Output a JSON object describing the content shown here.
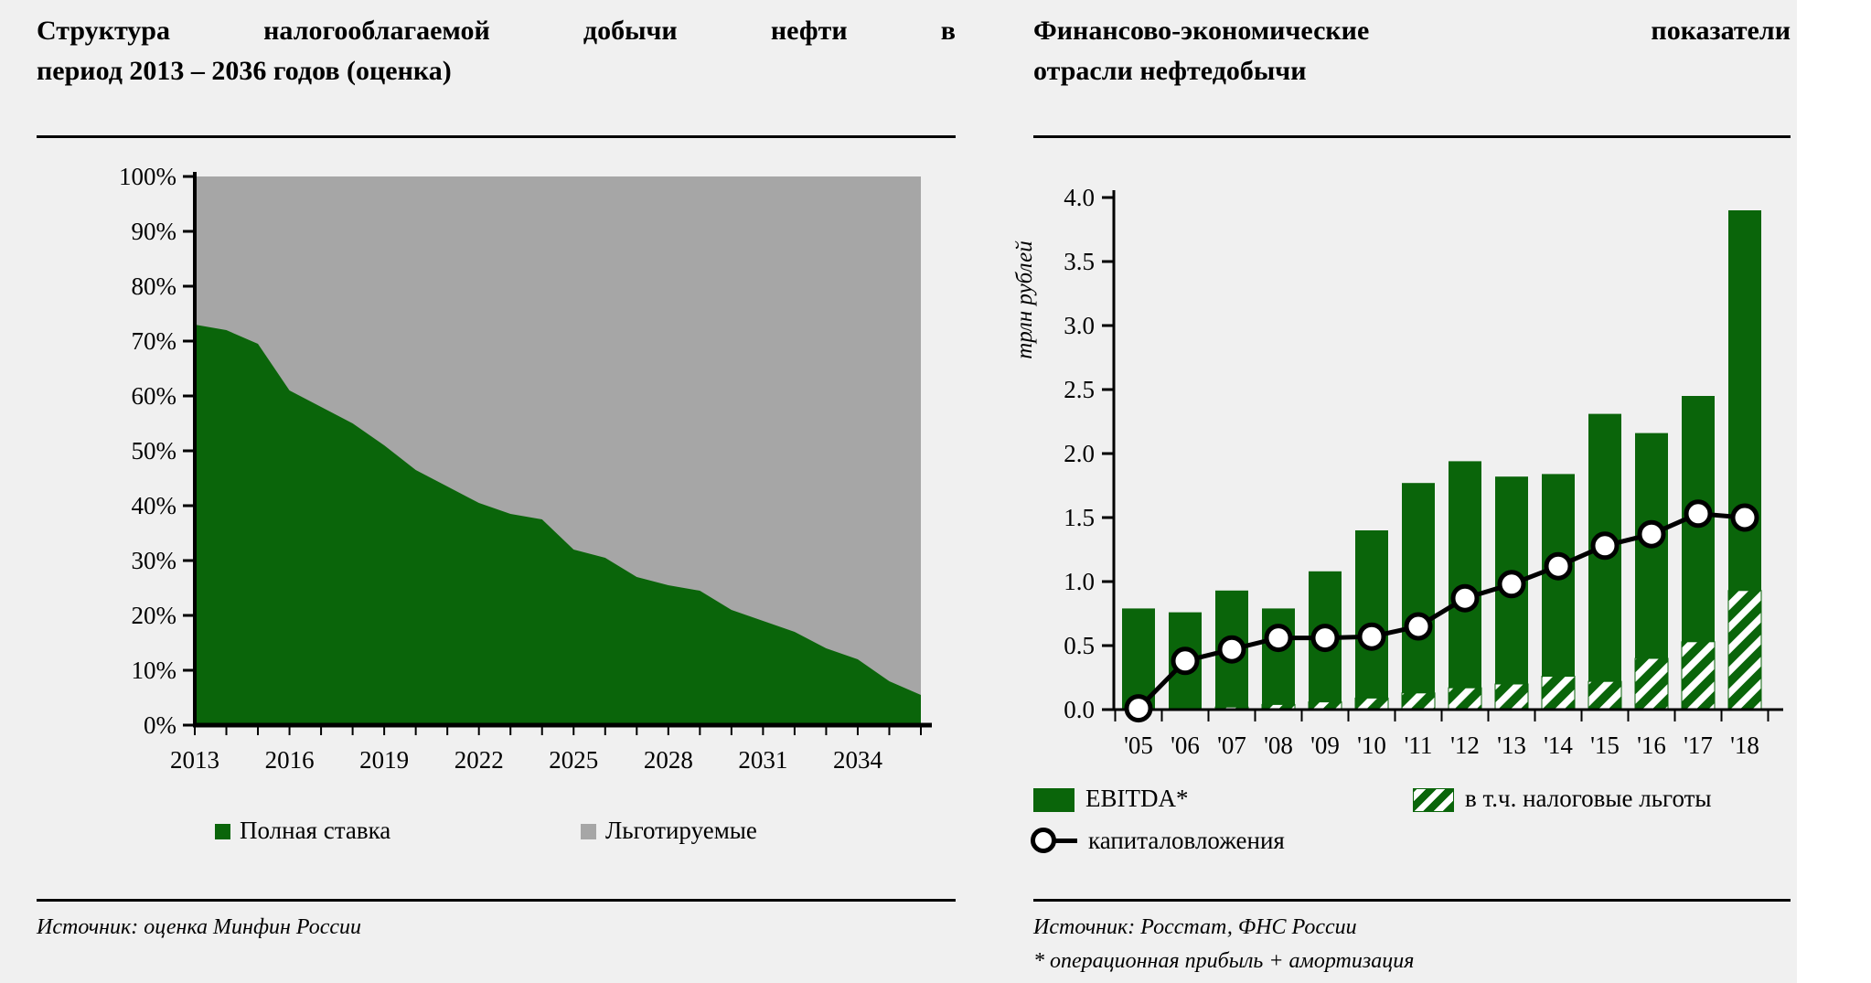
{
  "colors": {
    "green": "#0a650a",
    "gray": "#a6a6a6",
    "slide_background": "#f0f0f0",
    "line_black": "#000000"
  },
  "left_panel": {
    "title_lines": [
      "Структура налогооблагаемой добычи нефти в",
      "период 2013 – 2036 годов (оценка)"
    ],
    "legend": [
      {
        "label": "Полная ставка",
        "swatch": "solid-green-square"
      },
      {
        "label": "Льготируемые",
        "swatch": "solid-gray-square"
      }
    ],
    "source": "Источник: оценка Минфин России"
  },
  "right_panel": {
    "title_lines": [
      "Финансово-экономические показатели",
      "отрасли нефтедобычи"
    ],
    "legend": [
      {
        "label": "EBITDA*",
        "swatch": "solid-green-rect"
      },
      {
        "label": "в т.ч. налоговые льготы",
        "swatch": "green-hatched-rect"
      },
      {
        "label": "капиталовложения",
        "swatch": "line-with-circle-marker"
      }
    ],
    "source": "Источник: Росстат, ФНС России",
    "footnote": "* операционная прибыль + амортизация"
  },
  "chart_data": [
    {
      "type": "area",
      "title": "Структура налогооблагаемой добычи нефти в период 2013 – 2036 годов (оценка)",
      "stacked_percent": true,
      "grid": false,
      "legend_position": "bottom",
      "x": [
        2013,
        2014,
        2015,
        2016,
        2017,
        2018,
        2019,
        2020,
        2021,
        2022,
        2023,
        2024,
        2025,
        2026,
        2027,
        2028,
        2029,
        2030,
        2031,
        2032,
        2033,
        2034,
        2035,
        2036
      ],
      "xtick_labels": [
        2013,
        2016,
        2019,
        2022,
        2025,
        2028,
        2031,
        2034
      ],
      "ylim": [
        0,
        100
      ],
      "ytick_step": 10,
      "ytick_suffix": "%",
      "xlabel": "",
      "ylabel": "",
      "series": [
        {
          "name": "Полная ставка",
          "color": "#0a650a",
          "values": [
            73,
            72,
            69.5,
            61,
            58,
            55,
            51,
            46.5,
            43.5,
            40.5,
            38.5,
            37.5,
            32,
            30.5,
            27,
            25.5,
            24.5,
            21,
            19,
            17,
            14,
            12,
            8,
            5.5
          ]
        },
        {
          "name": "Льготируемые",
          "color": "#a6a6a6",
          "values": [
            27,
            28,
            30.5,
            39,
            42,
            45,
            49,
            53.5,
            56.5,
            59.5,
            61.5,
            62.5,
            68,
            69.5,
            73,
            74.5,
            75.5,
            79,
            81,
            83,
            86,
            88,
            92,
            94.5
          ]
        }
      ]
    },
    {
      "type": "bar",
      "title": "Финансово-экономические показатели отрасли нефтедобычи",
      "grid": false,
      "legend_position": "bottom",
      "categories": [
        "'05",
        "'06",
        "'07",
        "'08",
        "'09",
        "'10",
        "'11",
        "'12",
        "'13",
        "'14",
        "'15",
        "'16",
        "'17",
        "'18"
      ],
      "ylim": [
        0,
        4
      ],
      "ytick_step": 0.5,
      "xlabel": "",
      "ylabel": "трлн рублей",
      "series": [
        {
          "name": "EBITDA*",
          "type": "bar",
          "color": "#0a650a",
          "values": [
            0.79,
            0.76,
            0.93,
            0.79,
            1.08,
            1.4,
            1.77,
            1.94,
            1.82,
            1.84,
            2.31,
            2.16,
            2.45,
            3.9
          ]
        },
        {
          "name": "в т.ч. налоговые льготы",
          "type": "bar-hatched",
          "color": "#0a650a",
          "values": [
            0,
            0,
            0.02,
            0.04,
            0.06,
            0.09,
            0.13,
            0.17,
            0.2,
            0.26,
            0.22,
            0.4,
            0.53,
            0.93
          ]
        },
        {
          "name": "капиталовложения",
          "type": "line",
          "color": "#000000",
          "marker": "circle",
          "values": [
            0.01,
            0.38,
            0.47,
            0.56,
            0.56,
            0.57,
            0.65,
            0.87,
            0.98,
            1.12,
            1.28,
            1.37,
            1.53,
            1.5
          ]
        }
      ]
    }
  ]
}
